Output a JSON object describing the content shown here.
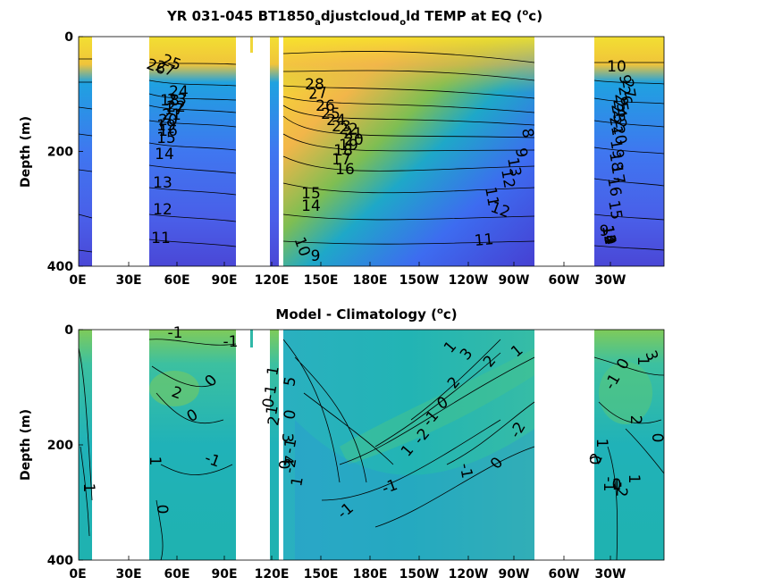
{
  "chart_data": [
    {
      "type": "heatmap",
      "title_main": "YR 031-045 BT1850",
      "title_sub1": "a",
      "title_mid": "djustcloud",
      "title_sub2": "o",
      "title_end": "ld TEMP at EQ (",
      "title_sup": "o",
      "title_close": "c)",
      "ylabel": "Depth (m)",
      "ylim": [
        0,
        400
      ],
      "y_reversed": true,
      "yticks": [
        "0",
        "200",
        "400"
      ],
      "xticks": [
        "0E",
        "30E",
        "60E",
        "90E",
        "120E",
        "150E",
        "180E",
        "150W",
        "120W",
        "90W",
        "60W",
        "30W"
      ],
      "contour_labels": [
        "27",
        "26",
        "25",
        "24",
        "23",
        "22",
        "21",
        "20",
        "19",
        "18",
        "17",
        "16",
        "15",
        "14",
        "13",
        "12",
        "11",
        "28",
        "27",
        "26",
        "25",
        "24",
        "23",
        "22",
        "21",
        "20",
        "19",
        "18",
        "17",
        "16",
        "15",
        "14",
        "12",
        "11",
        "10",
        "9",
        "8",
        "9",
        "13",
        "12",
        "11",
        "10",
        "9",
        "27",
        "26",
        "25",
        "24",
        "23",
        "22",
        "21",
        "20",
        "19",
        "18",
        "17",
        "16",
        "15",
        "14",
        "13",
        "12",
        "11",
        "10",
        "9"
      ]
    },
    {
      "type": "heatmap",
      "title_main": "Model - Climatology (",
      "title_sup": "o",
      "title_close": "c)",
      "ylabel": "Depth (m)",
      "ylim": [
        0,
        400
      ],
      "y_reversed": true,
      "yticks": [
        "0",
        "200",
        "400"
      ],
      "xticks": [
        "0E",
        "30E",
        "60E",
        "90E",
        "120E",
        "150E",
        "180E",
        "150W",
        "120W",
        "90W",
        "60W",
        "30W"
      ],
      "contour_labels": [
        "-1",
        "-1",
        "0",
        "2",
        "0",
        "1",
        "-1",
        "1",
        "0",
        "1",
        "-1",
        "0",
        "1",
        "2",
        "3",
        "4",
        "5",
        "0",
        "-1",
        "-2",
        "1",
        "0",
        "-1",
        "1",
        "-2",
        "-1",
        "0",
        "1",
        "2",
        "3",
        "2",
        "1",
        "0",
        "-1",
        "-2",
        "-1",
        "0",
        "1",
        "2",
        "-1",
        "0",
        "1",
        "3",
        "2",
        "1",
        "0",
        "-1",
        "-2",
        "0",
        "1"
      ]
    }
  ]
}
